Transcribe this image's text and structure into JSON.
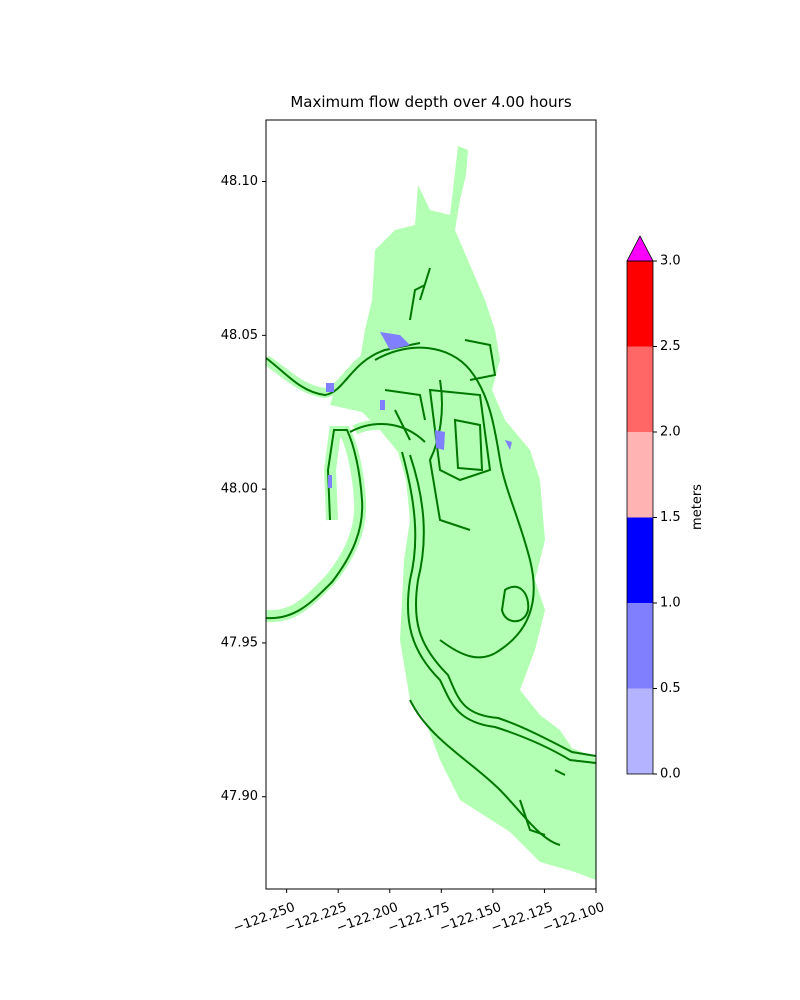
{
  "chart_data": {
    "type": "map",
    "title": "Maximum flow depth over 4.00 hours",
    "xlim": [
      -122.26,
      -122.1
    ],
    "xticks": [
      {
        "value": -122.25,
        "label": "−122.250"
      },
      {
        "value": -122.225,
        "label": "−122.225"
      },
      {
        "value": -122.2,
        "label": "−122.200"
      },
      {
        "value": -122.175,
        "label": "−122.175"
      },
      {
        "value": -122.15,
        "label": "−122.150"
      },
      {
        "value": -122.125,
        "label": "−122.125"
      },
      {
        "value": -122.1,
        "label": "−122.100"
      }
    ],
    "ylim": [
      47.87,
      48.12
    ],
    "yticks": [
      {
        "value": 47.9,
        "label": "47.90"
      },
      47.95,
      {
        "value": 48.0,
        "label": "48.00"
      },
      48.05,
      {
        "value": 48.1,
        "label": "48.10"
      }
    ],
    "colorbar": {
      "label": "meters",
      "levels": [
        {
          "value": 0,
          "label": "0.0"
        },
        {
          "value": 0.5,
          "label": "0.5"
        },
        {
          "value": 1,
          "label": "1.0"
        },
        {
          "value": 1.5,
          "label": "1.5"
        },
        {
          "value": 2,
          "label": "2.0"
        },
        {
          "value": 2.5,
          "label": "2.5"
        },
        {
          "value": 3,
          "label": "3.0"
        }
      ],
      "colors": [
        "#b3b3ff",
        "#8080ff",
        "#0000ff",
        "#ffb3b3",
        "#ff6666",
        "#ff0000"
      ],
      "extend_color": "#ff00ff"
    }
  }
}
